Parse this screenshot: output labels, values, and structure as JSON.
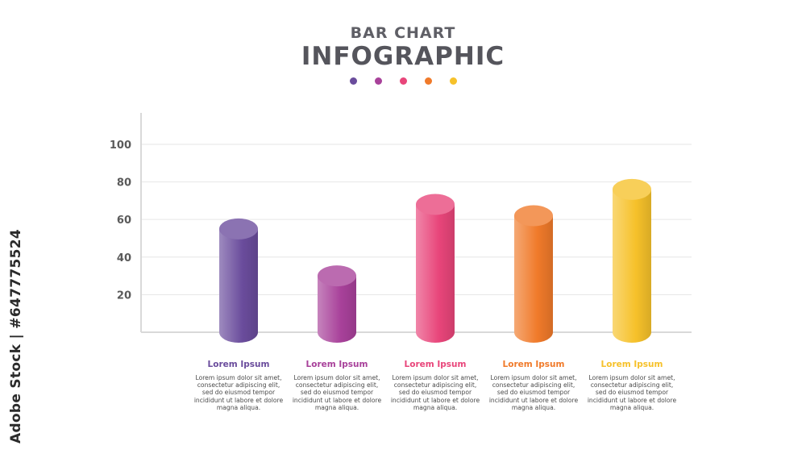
{
  "header": {
    "subtitle": "BAR CHART",
    "title": "INFOGRAPHIC",
    "dot_colors": [
      "#6a4c9c",
      "#a8419a",
      "#e8457a",
      "#f07a2a",
      "#f6c12a"
    ]
  },
  "chart_data": {
    "type": "bar",
    "categories": [
      "Lorem Ipsum",
      "Lorem Ipsum",
      "Lorem Ipsum",
      "Lorem Ipsum",
      "Lorem Ipsum"
    ],
    "values": [
      55,
      30,
      68,
      62,
      76
    ],
    "ylim": [
      0,
      115
    ],
    "yticks": [
      20,
      40,
      60,
      80,
      100
    ],
    "grid": true,
    "colors": [
      "#6a4c9c",
      "#a8419a",
      "#e8457a",
      "#f07a2a",
      "#f6c12a"
    ]
  },
  "columns": [
    {
      "title": "Lorem Ipsum",
      "desc": "Lorem ipsum dolor sit amet, consectetur adipiscing elit, sed do eiusmod tempor incididunt ut labore et dolore magna aliqua."
    },
    {
      "title": "Lorem Ipsum",
      "desc": "Lorem ipsum dolor sit amet, consectetur adipiscing elit, sed do eiusmod tempor incididunt ut labore et dolore magna aliqua."
    },
    {
      "title": "Lorem Ipsum",
      "desc": "Lorem ipsum dolor sit amet, consectetur adipiscing elit, sed do eiusmod tempor incididunt ut labore et dolore magna aliqua."
    },
    {
      "title": "Lorem Ipsum",
      "desc": "Lorem ipsum dolor sit amet, consectetur adipiscing elit, sed do eiusmod tempor incididunt ut labore et dolore magna aliqua."
    },
    {
      "title": "Lorem Ipsum",
      "desc": "Lorem ipsum dolor sit amet, consectetur adipiscing elit, sed do eiusmod tempor incididunt ut labore et dolore magna aliqua."
    }
  ],
  "watermark": "Adobe Stock | #647775524"
}
